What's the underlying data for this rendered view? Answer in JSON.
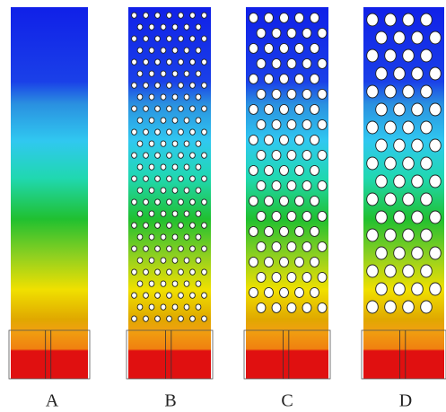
{
  "labels": [
    "A",
    "B",
    "C",
    "D"
  ]
}
